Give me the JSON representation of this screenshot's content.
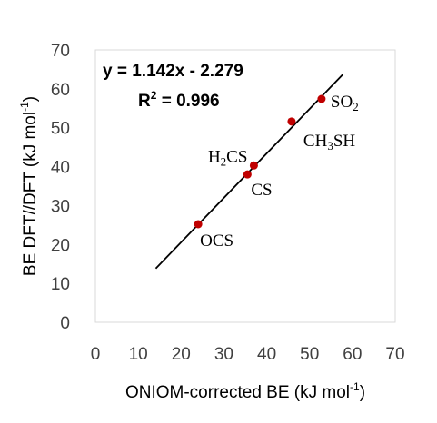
{
  "chart_data": {
    "type": "scatter",
    "xlabel": "ONIOM-corrected BE (kJ mol",
    "xlabel_sup": "-1",
    "xlabel_end": ")",
    "ylabel": "BE DFT//DFT (kJ mol",
    "ylabel_sup": "-1",
    "ylabel_end": ")",
    "xlim": [
      0,
      70
    ],
    "ylim": [
      0,
      70
    ],
    "xticks": [
      0,
      10,
      20,
      30,
      40,
      50,
      60,
      70
    ],
    "yticks": [
      0,
      10,
      20,
      30,
      40,
      50,
      60,
      70
    ],
    "grid": false,
    "point_color": "#c00000",
    "line_color": "#000000",
    "points": [
      {
        "name": "OCS",
        "x": 24.0,
        "y": 25.2,
        "label": [
          {
            "t": "OCS"
          }
        ]
      },
      {
        "name": "CS",
        "x": 35.5,
        "y": 38.0,
        "label": [
          {
            "t": "CS"
          }
        ]
      },
      {
        "name": "H2CS",
        "x": 37.0,
        "y": 40.3,
        "label": [
          {
            "t": "H"
          },
          {
            "t": "2",
            "sub": true
          },
          {
            "t": "CS"
          }
        ]
      },
      {
        "name": "CH3SH",
        "x": 45.8,
        "y": 51.6,
        "label": [
          {
            "t": "CH"
          },
          {
            "t": "3",
            "sub": true
          },
          {
            "t": "SH"
          }
        ]
      },
      {
        "name": "SO2",
        "x": 52.8,
        "y": 57.4,
        "label": [
          {
            "t": "SO"
          },
          {
            "t": "2",
            "sub": true
          }
        ]
      }
    ],
    "fit": {
      "slope": 1.142,
      "intercept": -2.279,
      "x_start": 14.1,
      "x_end": 57.8,
      "equation": "y = 1.142x - 2.279",
      "r2_prefix": "R",
      "r2_sup": "2",
      "r2_value": " = 0.996"
    }
  }
}
